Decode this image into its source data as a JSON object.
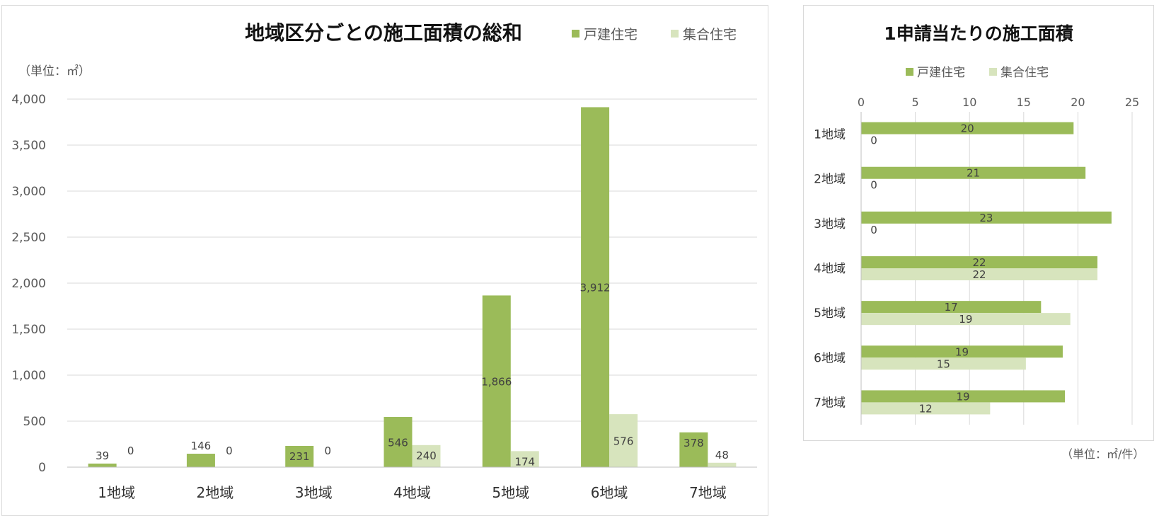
{
  "chart_data": [
    {
      "type": "bar",
      "title": "地域区分ごとの施工面積の総和",
      "unit_label": "（単位：㎡）",
      "categories": [
        "1地域",
        "2地域",
        "3地域",
        "4地域",
        "5地域",
        "6地域",
        "7地域"
      ],
      "series": [
        {
          "name": "戸建住宅",
          "color": "#9bbb59",
          "values": [
            39,
            146,
            231,
            546,
            1866,
            3912,
            378
          ]
        },
        {
          "name": "集合住宅",
          "color": "#d7e4bd",
          "values": [
            0,
            0,
            0,
            240,
            174,
            576,
            48
          ]
        }
      ],
      "data_labels": [
        [
          "39",
          "146",
          "231",
          "546",
          "1,866",
          "3,912",
          "378"
        ],
        [
          "0",
          "0",
          "0",
          "240",
          "174",
          "576",
          "48"
        ]
      ],
      "y_ticks": [
        "0",
        "500",
        "1,000",
        "1,500",
        "2,000",
        "2,500",
        "3,000",
        "3,500",
        "4,000"
      ],
      "ylim": [
        0,
        4000
      ],
      "grid": true,
      "legend": "top-right"
    },
    {
      "type": "bar",
      "orientation": "horizontal",
      "title": "1申請当たりの施工面積",
      "unit_label": "（単位：㎡/件）",
      "categories": [
        "1地域",
        "2地域",
        "3地域",
        "4地域",
        "5地域",
        "6地域",
        "7地域"
      ],
      "series": [
        {
          "name": "戸建住宅",
          "color": "#9bbb59",
          "values": [
            19.6,
            20.7,
            23.1,
            21.8,
            16.6,
            18.6,
            18.8
          ]
        },
        {
          "name": "集合住宅",
          "color": "#d7e4bd",
          "values": [
            0,
            0,
            0,
            21.8,
            19.3,
            15.2,
            11.9
          ]
        }
      ],
      "data_labels": [
        [
          "20",
          "21",
          "23",
          "22",
          "17",
          "19",
          "19"
        ],
        [
          "0",
          "0",
          "0",
          "22",
          "19",
          "15",
          "12"
        ]
      ],
      "x_ticks": [
        "0",
        "5",
        "10",
        "15",
        "20",
        "25"
      ],
      "xlim": [
        0,
        25
      ],
      "grid": true,
      "legend": "top"
    }
  ]
}
